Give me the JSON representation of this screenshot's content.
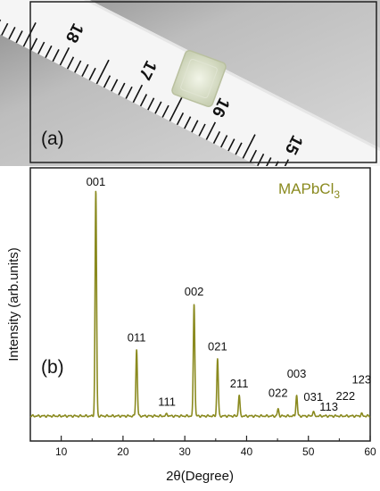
{
  "panel_a": {
    "label": "(a)",
    "ruler_numbers": [
      "18",
      "17",
      "16",
      "15"
    ]
  },
  "panel_b": {
    "label": "(b)"
  },
  "colors": {
    "series": "#8a8a1f",
    "frame": "#222222"
  },
  "chart_data": {
    "type": "line",
    "xlabel": "2θ(Degree)",
    "ylabel": "Intensity (arb.units)",
    "xlim": [
      5,
      60
    ],
    "xticks": [
      10,
      20,
      30,
      40,
      50,
      60
    ],
    "y_tick_labels": false,
    "grid": false,
    "legend": "top-right",
    "series": [
      {
        "name": "MAPbCl3",
        "baseline": 0.02,
        "peaks": [
          {
            "x": 15.6,
            "y": 1.0,
            "label": "001"
          },
          {
            "x": 22.2,
            "y": 0.31,
            "label": "011"
          },
          {
            "x": 27.1,
            "y": 0.03,
            "label": "111"
          },
          {
            "x": 31.5,
            "y": 0.51,
            "label": "002"
          },
          {
            "x": 35.3,
            "y": 0.27,
            "label": "021"
          },
          {
            "x": 38.8,
            "y": 0.11,
            "label": "211"
          },
          {
            "x": 45.1,
            "y": 0.05,
            "label": "022"
          },
          {
            "x": 48.1,
            "y": 0.11,
            "label": "003"
          },
          {
            "x": 50.8,
            "y": 0.04,
            "label": "031"
          },
          {
            "x": 53.3,
            "y": 0.02,
            "label": "113"
          },
          {
            "x": 56.0,
            "y": 0.02,
            "label": "222"
          },
          {
            "x": 58.6,
            "y": 0.03,
            "label": "123"
          }
        ]
      }
    ]
  }
}
